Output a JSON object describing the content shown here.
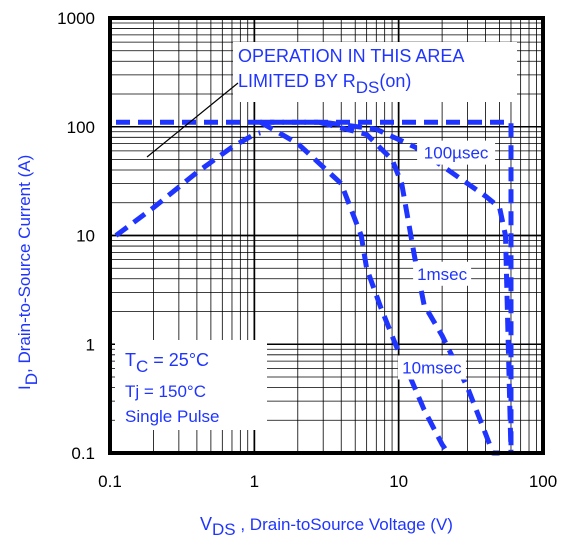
{
  "chart_data": {
    "type": "line",
    "xscale": "log",
    "yscale": "log",
    "xlim": [
      0.1,
      100
    ],
    "ylim": [
      0.1,
      1000
    ],
    "x_ticks": [
      "0.1",
      "1",
      "10",
      "100"
    ],
    "y_ticks": [
      "0.1",
      "1",
      "10",
      "100",
      "1000"
    ],
    "grid": true,
    "xlabel": {
      "prefix": "V",
      "sub": "DS",
      "rest": " , Drain-toSource Voltage (V)"
    },
    "ylabel": {
      "prefix": "I",
      "sub": "D",
      "rest": ",  Drain-to-Source Current (A)"
    },
    "annotation": {
      "line1": "OPERATION IN THIS AREA",
      "line2_prefix": "LIMITED BY R",
      "line2_sub": "DS",
      "line2_suffix": "(on)"
    },
    "conditions": {
      "tc_prefix": "T",
      "tc_sub": "C",
      "tc_rest": " = 25°C",
      "tj": "Tj = 150°C",
      "pulse": "Single Pulse"
    },
    "line_color": "#1f35ff",
    "series": [
      {
        "name": "",
        "x": [
          0.11,
          0.2,
          0.4,
          0.7,
          1.0,
          1.1
        ],
        "y": [
          10,
          18,
          38,
          65,
          85,
          88
        ]
      },
      {
        "name": "",
        "x": [
          0.11,
          1.0,
          10,
          50,
          60,
          60
        ],
        "y": [
          110,
          110,
          110,
          110,
          110,
          0.1
        ]
      },
      {
        "name": "100µsec",
        "x": [
          1.1,
          3.0,
          7.0,
          13,
          22,
          40,
          50,
          55,
          60
        ],
        "y": [
          110,
          110,
          95,
          65,
          40,
          23,
          18,
          10,
          0.1
        ]
      },
      {
        "name": "1msec",
        "x": [
          2.8,
          6.0,
          9.0,
          10.5,
          13,
          15,
          20,
          30,
          40,
          45,
          50
        ],
        "y": [
          110,
          85,
          50,
          30,
          6,
          2.3,
          1.2,
          0.4,
          0.15,
          0.1,
          0.1
        ]
      },
      {
        "name": "10msec",
        "x": [
          1.1,
          2.0,
          4.0,
          5.5,
          6.0,
          7.5,
          9.5,
          12,
          15,
          20,
          22
        ],
        "y": [
          110,
          70,
          30,
          10,
          5,
          2.2,
          1.0,
          0.5,
          0.25,
          0.12,
          0.1
        ]
      }
    ],
    "curve_labels": [
      {
        "text": "100µsec",
        "x": 25,
        "y": 52
      },
      {
        "text": "1msec",
        "x": 20,
        "y": 4
      },
      {
        "text": "10msec",
        "x": 17,
        "y": 0.55
      }
    ]
  }
}
